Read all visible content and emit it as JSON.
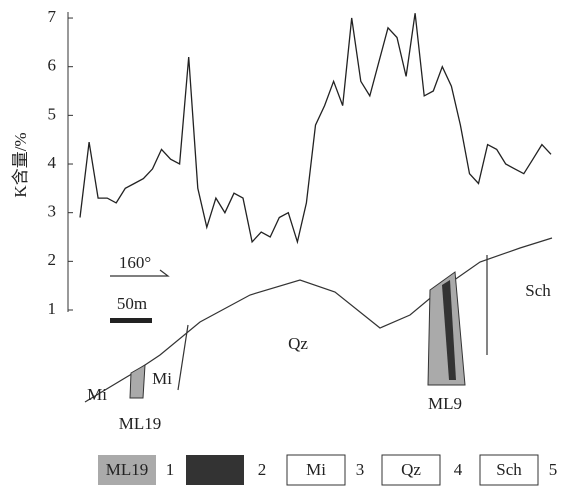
{
  "chart_data": {
    "type": "line",
    "y_label": "K含量/%",
    "ylim": [
      1,
      7.2
    ],
    "yticks": [
      1,
      2,
      3,
      4,
      5,
      6,
      7
    ],
    "series": [
      {
        "color": "#222222",
        "values": [
          2.9,
          4.45,
          3.3,
          3.3,
          3.2,
          3.5,
          3.6,
          3.7,
          3.9,
          4.3,
          4.1,
          4.0,
          6.2,
          3.5,
          2.7,
          3.3,
          3.0,
          3.4,
          3.3,
          2.4,
          2.6,
          2.5,
          2.9,
          3.0,
          2.4,
          3.2,
          4.8,
          5.2,
          5.7,
          5.2,
          7.0,
          5.7,
          5.4,
          6.1,
          6.8,
          6.6,
          5.8,
          7.1,
          5.4,
          5.5,
          6.0,
          5.6,
          4.8,
          3.8,
          3.6,
          4.4,
          4.3,
          4.0,
          3.9,
          3.8,
          4.1,
          4.4,
          4.2
        ]
      }
    ],
    "annotations": [
      "160°",
      "50m",
      "Qz",
      "Mi",
      "Mi",
      "ML19",
      "ML9",
      "Sch"
    ],
    "legend": [
      {
        "label": "ML19",
        "number": "1"
      },
      {
        "number": "2"
      },
      {
        "label": "Mi",
        "number": "3"
      },
      {
        "label": "Qz",
        "number": "4"
      },
      {
        "label": "Sch",
        "number": "5"
      }
    ]
  }
}
